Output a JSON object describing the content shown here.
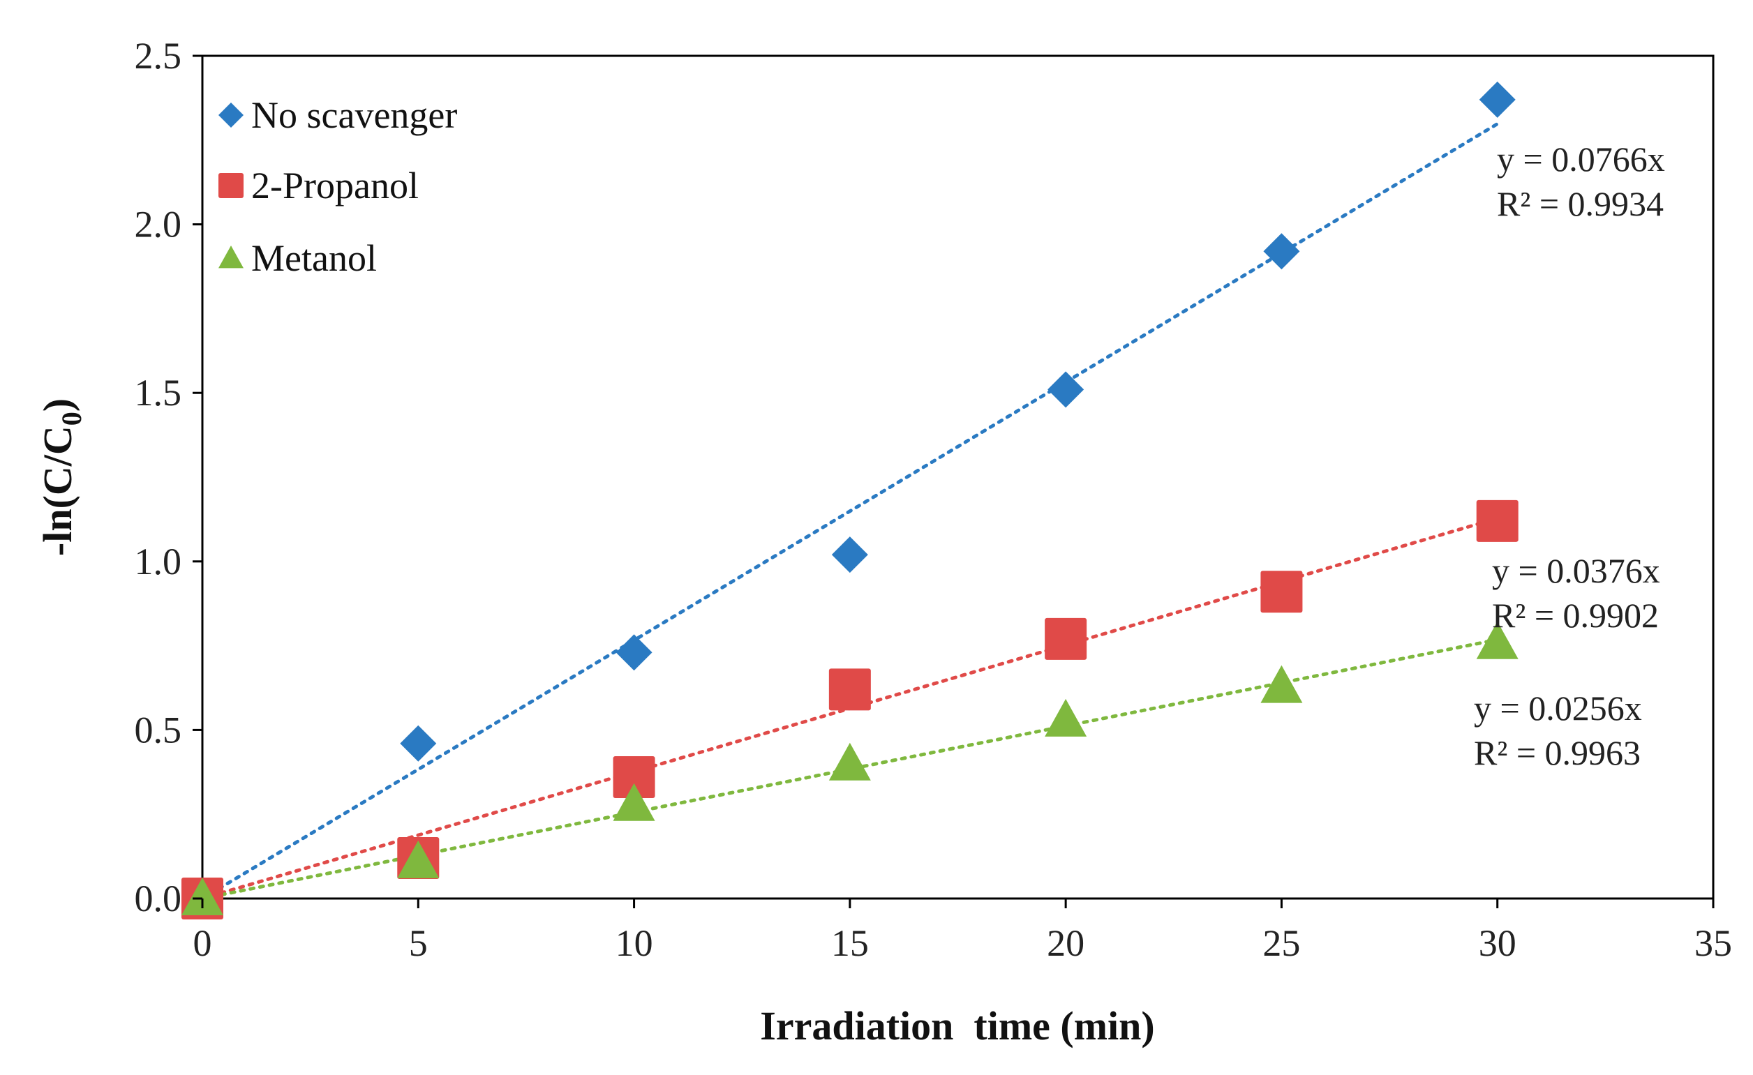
{
  "chart_data": {
    "type": "scatter",
    "title": "",
    "xlabel": "Irradiation  time (min)",
    "ylabel_main": "-ln(C/C",
    "ylabel_sub": "0",
    "ylabel_close": ")",
    "xlim": [
      0,
      35
    ],
    "ylim": [
      0,
      2.5
    ],
    "xticks": [
      0,
      5,
      10,
      15,
      20,
      25,
      30,
      35
    ],
    "yticks": [
      0.0,
      0.5,
      1.0,
      1.5,
      2.0,
      2.5
    ],
    "xtick_labels": [
      "0",
      "5",
      "10",
      "15",
      "20",
      "25",
      "30",
      "35"
    ],
    "ytick_labels": [
      "0.0",
      "0.5",
      "1.0",
      "1.5",
      "2.0",
      "2.5"
    ],
    "grid": false,
    "legend_position": "top-left",
    "series": [
      {
        "name": "No scavenger",
        "marker": "diamond",
        "color": "#2a7ac2",
        "x": [
          0,
          5,
          10,
          15,
          20,
          25,
          30
        ],
        "y": [
          0.0,
          0.46,
          0.73,
          1.02,
          1.51,
          1.92,
          2.37
        ],
        "trendline": {
          "slope": 0.0766,
          "equation": "y = 0.0766x",
          "r2": "R² = 0.9934"
        }
      },
      {
        "name": "2-Propanol",
        "marker": "square",
        "color": "#e04a48",
        "x": [
          0,
          5,
          10,
          15,
          20,
          25,
          30
        ],
        "y": [
          0.0,
          0.12,
          0.36,
          0.62,
          0.77,
          0.91,
          1.12
        ],
        "trendline": {
          "slope": 0.0376,
          "equation": "y = 0.0376x",
          "r2": "R² = 0.9902"
        }
      },
      {
        "name": "Metanol",
        "marker": "triangle",
        "color": "#7fb83e",
        "x": [
          0,
          5,
          10,
          15,
          20,
          25,
          30
        ],
        "y": [
          0.0,
          0.11,
          0.28,
          0.4,
          0.53,
          0.63,
          0.76
        ],
        "trendline": {
          "slope": 0.0256,
          "equation": "y = 0.0256x",
          "r2": "R² = 0.9963"
        }
      }
    ]
  }
}
